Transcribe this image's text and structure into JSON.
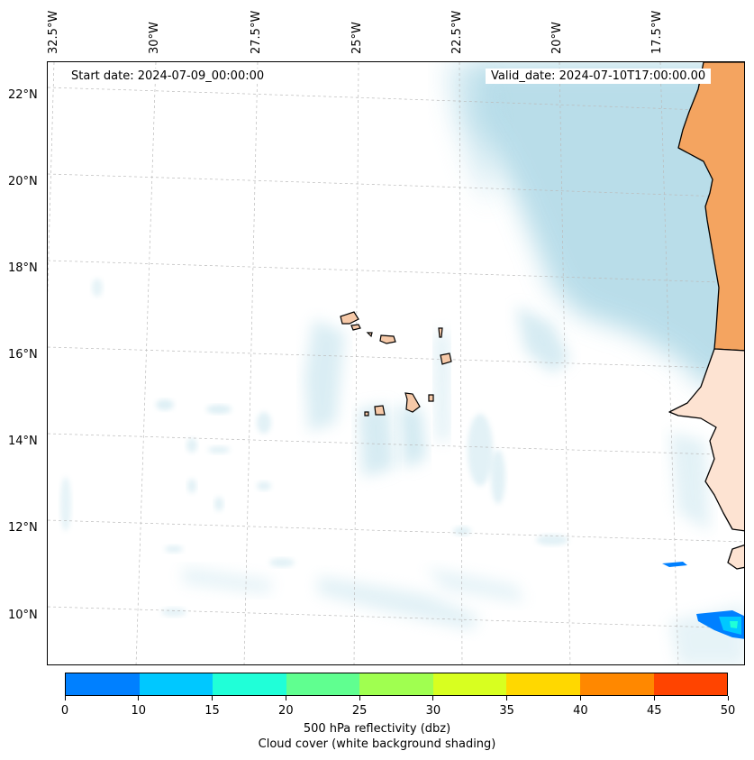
{
  "header": {
    "start_date": "Start date: 2024-07-09_00:00:00",
    "valid_date": "Valid_date: 2024-07-10T17:00:00.00"
  },
  "axes": {
    "lon_labels": [
      "32.5°W",
      "30°W",
      "27.5°W",
      "25°W",
      "22.5°W",
      "20°W",
      "17.5°W"
    ],
    "lat_labels": [
      "22°N",
      "20°N",
      "18°N",
      "16°N",
      "14°N",
      "12°N",
      "10°N"
    ]
  },
  "colorbar": {
    "ticks": [
      "0",
      "10",
      "15",
      "20",
      "25",
      "30",
      "35",
      "40",
      "45",
      "50"
    ],
    "colors": [
      "#0080ff",
      "#00c8ff",
      "#20ffd8",
      "#60ff90",
      "#a0ff50",
      "#d8ff20",
      "#ffd800",
      "#ff8800",
      "#ff4400"
    ],
    "title": "500 hPa reflectivity (dbz)",
    "subtitle": "Cloud cover (white background shading)"
  },
  "map_colors": {
    "cloud": "#add8e6",
    "land_north": "#f4a460",
    "land_south": "#fde3d2",
    "islands": "#f6c9a8"
  }
}
